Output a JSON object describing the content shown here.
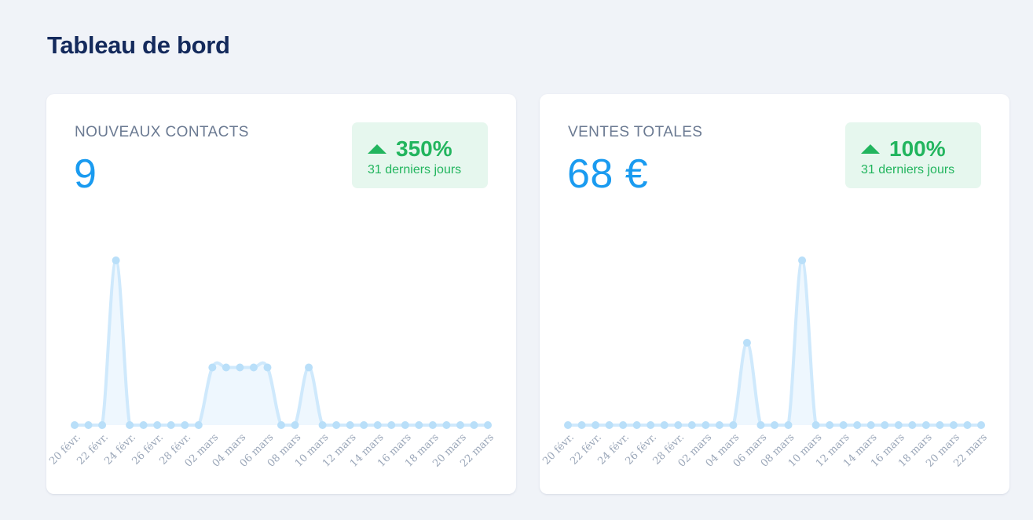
{
  "page": {
    "title": "Tableau de bord"
  },
  "cards": [
    {
      "label": "NOUVEAUX CONTACTS",
      "value": "9",
      "trend": {
        "percent": "350%",
        "period": "31 derniers jours",
        "direction": "up"
      }
    },
    {
      "label": "VENTES TOTALES",
      "value": "68 €",
      "trend": {
        "percent": "100%",
        "period": "31 derniers jours",
        "direction": "up"
      }
    }
  ],
  "colors": {
    "title": "#142a5c",
    "value": "#1a9bf0",
    "trend_text": "#22b55e",
    "trend_bg": "#e6f7ee",
    "line": "#cfe9fc",
    "point": "#b9dff9",
    "fill": "#eef7fe"
  },
  "chart_data": [
    {
      "type": "area",
      "x_tick_labels": [
        "20 févr.",
        "22 févr.",
        "24 févr.",
        "26 févr.",
        "28 févr.",
        "02 mars",
        "04 mars",
        "06 mars",
        "08 mars",
        "10 mars",
        "12 mars",
        "14 mars",
        "16 mars",
        "18 mars",
        "20 mars",
        "22 mars"
      ],
      "values": [
        0,
        0,
        0,
        4,
        0,
        0,
        0,
        0,
        0,
        0,
        1.4,
        1.4,
        1.4,
        1.4,
        1.4,
        0,
        0,
        1.4,
        0,
        0,
        0,
        0,
        0,
        0,
        0,
        0,
        0,
        0,
        0,
        0,
        0
      ],
      "grid": false
    },
    {
      "type": "area",
      "x_tick_labels": [
        "20 févr.",
        "22 févr.",
        "24 févr.",
        "26 févr.",
        "28 févr.",
        "02 mars",
        "04 mars",
        "06 mars",
        "08 mars",
        "10 mars",
        "12 mars",
        "14 mars",
        "16 mars",
        "18 mars",
        "20 mars",
        "22 mars"
      ],
      "values": [
        0,
        0,
        0,
        0,
        0,
        0,
        0,
        0,
        0,
        0,
        0,
        0,
        0,
        2,
        0,
        0,
        0,
        4,
        0,
        0,
        0,
        0,
        0,
        0,
        0,
        0,
        0,
        0,
        0,
        0,
        0
      ],
      "grid": false
    }
  ]
}
